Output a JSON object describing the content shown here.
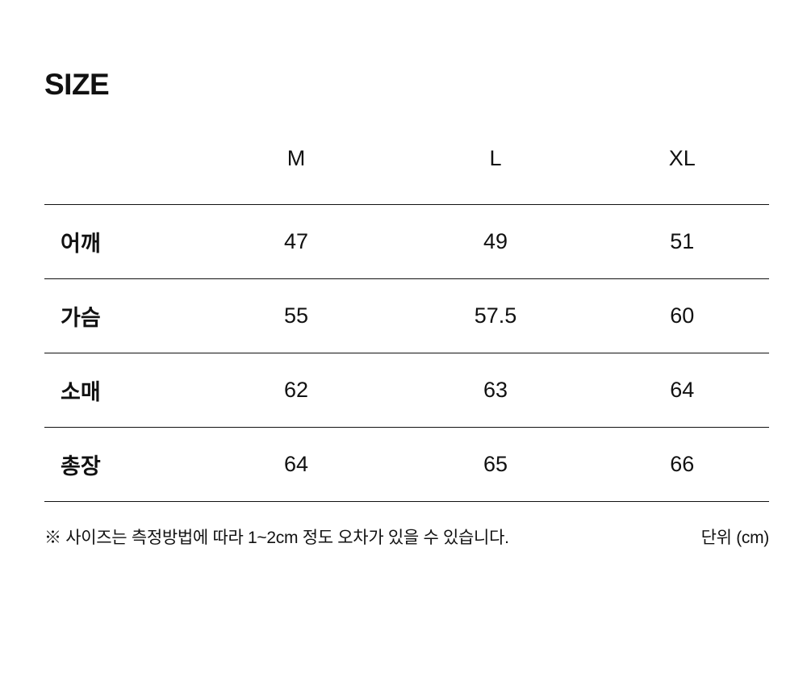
{
  "title": "SIZE",
  "table": {
    "columns": [
      "M",
      "L",
      "XL"
    ],
    "rows": [
      {
        "label": "어깨",
        "values": [
          "47",
          "49",
          "51"
        ]
      },
      {
        "label": "가슴",
        "values": [
          "55",
          "57.5",
          "60"
        ]
      },
      {
        "label": "소매",
        "values": [
          "62",
          "63",
          "64"
        ]
      },
      {
        "label": "총장",
        "values": [
          "64",
          "65",
          "66"
        ]
      }
    ]
  },
  "footer": {
    "note": "※ 사이즈는 측정방법에 따라 1~2cm 정도 오차가 있을 수 있습니다.",
    "unit": "단위 (cm)"
  },
  "colors": {
    "text": "#111111",
    "line": "#111111",
    "background": "#ffffff"
  }
}
